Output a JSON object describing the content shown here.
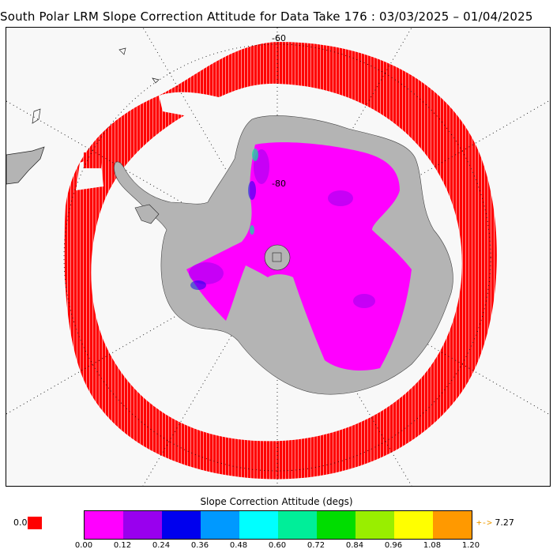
{
  "title": "South Polar LRM Slope Correction Attitude for Data Take 176 : 03/03/2025 – 01/04/2025",
  "map": {
    "lat_labels": [
      "-60",
      "-80"
    ],
    "colors": {
      "ocean": "#f8f8f8",
      "land": "#b4b4b4",
      "track": "#ff0000",
      "coast": "#000000"
    }
  },
  "legend": {
    "title": "Slope Correction Attitude (degs)",
    "zero_label": "0.0",
    "zero_color": "#ff0000",
    "colors": [
      "#ff00ff",
      "#9900ee",
      "#0000ee",
      "#0099ff",
      "#00ffff",
      "#00ee99",
      "#00dd00",
      "#99ee00",
      "#ffff00",
      "#ff9900"
    ],
    "ticks": [
      "0.00",
      "0.12",
      "0.24",
      "0.36",
      "0.48",
      "0.60",
      "0.72",
      "0.84",
      "0.96",
      "1.08",
      "1.20"
    ],
    "max_arrow": "+->",
    "max_value": "7.27"
  }
}
